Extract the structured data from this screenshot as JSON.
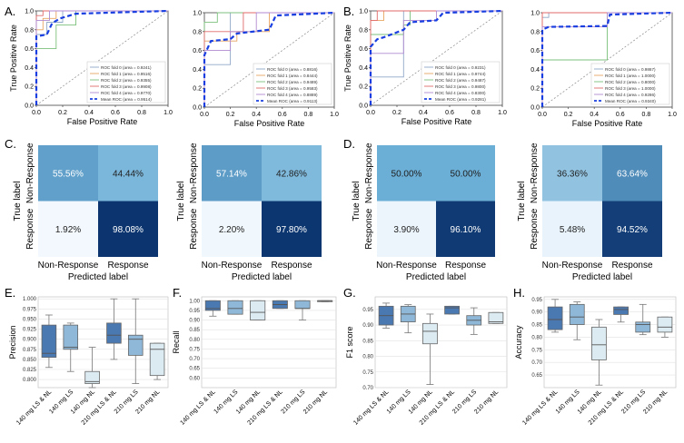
{
  "panel_labels": [
    "A.",
    "B.",
    "C.",
    "D.",
    "E.",
    "F.",
    "G.",
    "H."
  ],
  "palette": {
    "fold0": "#8fa8c8",
    "fold1": "#e8a560",
    "fold2": "#7cc07c",
    "fold3": "#e06a6a",
    "fold4": "#b08ad0",
    "mean": "#1a3fe0",
    "chance": "#888888",
    "box1": "#4a78b0",
    "box2": "#8fb8d8",
    "box3": "#dcebf2"
  },
  "chart_data": [
    {
      "id": "A1",
      "type": "line",
      "xlabel": "False Positive Rate",
      "ylabel": "True Positive Rate",
      "xlim": [
        0,
        1
      ],
      "ylim": [
        0,
        1
      ],
      "xticks": [
        "0.0",
        "0.2",
        "0.4",
        "0.6",
        "0.8",
        "1.0"
      ],
      "yticks": [
        "0.0",
        "0.2",
        "0.4",
        "0.6",
        "0.8",
        "1.0"
      ],
      "legend": [
        "ROC fold 0 (area = 0.9241)",
        "ROC fold 1 (area = 0.9516)",
        "ROC fold 2 (area = 0.9355)",
        "ROC fold 3 (area = 0.9908)",
        "ROC fold 4 (area = 0.9770)",
        "Mean ROC (area = 0.9514)"
      ],
      "series": [
        {
          "name": "fold0",
          "x": [
            0,
            0,
            0.08,
            0.08,
            0.2,
            0.2,
            1
          ],
          "y": [
            0,
            0.75,
            0.75,
            0.88,
            0.88,
            1,
            1
          ]
        },
        {
          "name": "fold1",
          "x": [
            0,
            0,
            0.05,
            0.05,
            0.15,
            0.15,
            1
          ],
          "y": [
            0,
            0.8,
            0.8,
            0.92,
            0.92,
            1,
            1
          ]
        },
        {
          "name": "fold2",
          "x": [
            0,
            0,
            0.15,
            0.15,
            0.3,
            0.3,
            1
          ],
          "y": [
            0,
            0.6,
            0.6,
            0.85,
            0.85,
            1,
            1
          ]
        },
        {
          "name": "fold3",
          "x": [
            0,
            0,
            0.05,
            0.05,
            1
          ],
          "y": [
            0,
            0.95,
            0.95,
            1,
            1
          ]
        },
        {
          "name": "fold4",
          "x": [
            0,
            0,
            0.1,
            0.1,
            1
          ],
          "y": [
            0,
            0.9,
            0.9,
            1,
            1
          ]
        },
        {
          "name": "mean",
          "x": [
            0,
            0,
            0.08,
            0.12,
            0.18,
            0.3,
            1
          ],
          "y": [
            0,
            0.73,
            0.75,
            0.87,
            0.92,
            0.97,
            1
          ]
        }
      ]
    },
    {
      "id": "A2",
      "type": "line",
      "xlabel": "False Positive Rate",
      "ylabel": "True Positive Rate",
      "xlim": [
        0,
        1
      ],
      "ylim": [
        0,
        1
      ],
      "xticks": [
        "0.0",
        "0.2",
        "0.4",
        "0.6",
        "0.8",
        "1.0"
      ],
      "yticks": [
        "0.0",
        "0.2",
        "0.4",
        "0.6",
        "0.8",
        "1.0"
      ],
      "legend": [
        "ROC fold 0 (area = 0.8816)",
        "ROC fold 1 (area = 0.8444)",
        "ROC fold 2 (area = 0.9489)",
        "ROC fold 3 (area = 0.9583)",
        "ROC fold 4 (area = 0.8889)",
        "Mean ROC (area = 0.9113)"
      ],
      "series": [
        {
          "name": "fold0",
          "x": [
            0,
            0,
            0.2,
            0.2,
            1
          ],
          "y": [
            0,
            0.45,
            0.45,
            1,
            1
          ]
        },
        {
          "name": "fold1",
          "x": [
            0,
            0,
            0.25,
            0.25,
            0.5,
            0.5,
            1
          ],
          "y": [
            0,
            0.7,
            0.7,
            0.8,
            0.8,
            1,
            1
          ]
        },
        {
          "name": "fold2",
          "x": [
            0,
            0,
            0.1,
            0.1,
            1
          ],
          "y": [
            0,
            0.9,
            0.9,
            1,
            1
          ]
        },
        {
          "name": "fold3",
          "x": [
            0,
            0,
            0.3,
            0.3,
            1
          ],
          "y": [
            0,
            0.8,
            0.8,
            1,
            1
          ]
        },
        {
          "name": "fold4",
          "x": [
            0,
            0,
            0.2,
            0.2,
            0.4,
            0.4,
            1
          ],
          "y": [
            0,
            0.6,
            0.6,
            0.8,
            0.8,
            1,
            1
          ]
        },
        {
          "name": "mean",
          "x": [
            0,
            0,
            0.05,
            0.2,
            0.25,
            0.5,
            0.55,
            1
          ],
          "y": [
            0,
            0.55,
            0.7,
            0.72,
            0.78,
            0.82,
            0.97,
            1
          ]
        }
      ]
    },
    {
      "id": "B1",
      "type": "line",
      "xlabel": "False Positive Rate",
      "ylabel": "True Positive Rate",
      "xlim": [
        0,
        1
      ],
      "ylim": [
        0,
        1
      ],
      "xticks": [
        "0.0",
        "0.2",
        "0.4",
        "0.6",
        "0.8",
        "1.0"
      ],
      "yticks": [
        "0.0",
        "0.2",
        "0.4",
        "0.6",
        "0.8",
        "1.0"
      ],
      "legend": [
        "ROC fold 0 (area = 0.9231)",
        "ROC fold 1 (area = 0.9744)",
        "ROC fold 2 (area = 0.9487)",
        "ROC fold 3 (area = 0.9800)",
        "ROC fold 4 (area = 0.8300)",
        "Mean ROC (area = 0.9281)"
      ],
      "series": [
        {
          "name": "fold0",
          "x": [
            0,
            0,
            0.25,
            0.25,
            1
          ],
          "y": [
            0,
            0.3,
            0.3,
            1,
            1
          ]
        },
        {
          "name": "fold1",
          "x": [
            0,
            0,
            0.1,
            0.1,
            1
          ],
          "y": [
            0,
            0.9,
            0.9,
            1,
            1
          ]
        },
        {
          "name": "fold2",
          "x": [
            0,
            0,
            0.25,
            0.25,
            0.3,
            0.3,
            1
          ],
          "y": [
            0,
            0.75,
            0.75,
            0.85,
            0.85,
            1,
            1
          ]
        },
        {
          "name": "fold3",
          "x": [
            0,
            0,
            0.05,
            0.05,
            1
          ],
          "y": [
            0,
            0.9,
            0.9,
            1,
            1
          ]
        },
        {
          "name": "fold4",
          "x": [
            0,
            0,
            0.25,
            0.25,
            0.5,
            0.5,
            1
          ],
          "y": [
            0,
            0.55,
            0.55,
            0.9,
            0.9,
            1,
            1
          ]
        },
        {
          "name": "mean",
          "x": [
            0,
            0,
            0.05,
            0.1,
            0.25,
            0.3,
            0.5,
            0.55,
            1
          ],
          "y": [
            0,
            0.62,
            0.7,
            0.72,
            0.8,
            0.88,
            0.9,
            0.98,
            1
          ]
        }
      ]
    },
    {
      "id": "B2",
      "type": "line",
      "xlabel": "False Positive Rate",
      "ylabel": "True Positive Rate",
      "xlim": [
        0,
        1
      ],
      "ylim": [
        0,
        1
      ],
      "xticks": [
        "0.0",
        "0.2",
        "0.4",
        "0.6",
        "0.8",
        "1.0"
      ],
      "yticks": [
        "0.0",
        "0.2",
        "0.4",
        "0.6",
        "0.8",
        "1.0"
      ],
      "legend": [
        "ROC fold 0 (area = 0.9867)",
        "ROC fold 1 (area = 1.0000)",
        "ROC fold 2 (area = 0.8000)",
        "ROC fold 3 (area = 1.0000)",
        "ROC fold 4 (area = 0.9286)",
        "Mean ROC (area = 0.9340)"
      ],
      "series": [
        {
          "name": "fold0",
          "x": [
            0,
            0,
            0.05,
            0.05,
            1
          ],
          "y": [
            0,
            0.95,
            0.95,
            1,
            1
          ]
        },
        {
          "name": "fold1",
          "x": [
            0,
            0,
            1
          ],
          "y": [
            0,
            1,
            1
          ]
        },
        {
          "name": "fold2",
          "x": [
            0,
            0,
            0.5,
            0.5,
            1
          ],
          "y": [
            0,
            0.5,
            0.5,
            1,
            1
          ]
        },
        {
          "name": "fold3",
          "x": [
            0,
            0,
            1
          ],
          "y": [
            0,
            1,
            1
          ]
        },
        {
          "name": "fold4",
          "x": [
            0,
            0,
            0.5,
            0.5,
            1
          ],
          "y": [
            0,
            0.85,
            0.85,
            1,
            1
          ]
        },
        {
          "name": "mean",
          "x": [
            0,
            0,
            0.05,
            0.5,
            0.52,
            1
          ],
          "y": [
            0,
            0.82,
            0.85,
            0.86,
            0.98,
            1
          ]
        }
      ]
    },
    {
      "id": "C1",
      "type": "heatmap",
      "xlabel": "Predicted label",
      "ylabel": "True label",
      "rows": [
        "Non-Response",
        "Response"
      ],
      "cols": [
        "Non-Response",
        "Response"
      ],
      "values": [
        [
          55.56,
          44.44
        ],
        [
          1.92,
          98.08
        ]
      ],
      "cells": [
        [
          "55.56%",
          "44.44%"
        ],
        [
          "1.92%",
          "98.08%"
        ]
      ]
    },
    {
      "id": "C2",
      "type": "heatmap",
      "xlabel": "Predicted label",
      "ylabel": "True label",
      "rows": [
        "Non-Response",
        "Response"
      ],
      "cols": [
        "Non-Response",
        "Response"
      ],
      "values": [
        [
          57.14,
          42.86
        ],
        [
          2.2,
          97.8
        ]
      ],
      "cells": [
        [
          "57.14%",
          "42.86%"
        ],
        [
          "2.20%",
          "97.80%"
        ]
      ]
    },
    {
      "id": "D1",
      "type": "heatmap",
      "xlabel": "Predicted label",
      "ylabel": "True label",
      "rows": [
        "Non-Response",
        "Response"
      ],
      "cols": [
        "Non-Response",
        "Response"
      ],
      "values": [
        [
          50.0,
          50.0
        ],
        [
          3.9,
          96.1
        ]
      ],
      "cells": [
        [
          "50.00%",
          "50.00%"
        ],
        [
          "3.90%",
          "96.10%"
        ]
      ]
    },
    {
      "id": "D2",
      "type": "heatmap",
      "xlabel": "Predicted label",
      "ylabel": "True label",
      "rows": [
        "Non-Response",
        "Response"
      ],
      "cols": [
        "Non-Response",
        "Response"
      ],
      "values": [
        [
          36.36,
          63.64
        ],
        [
          5.48,
          94.52
        ]
      ],
      "cells": [
        [
          "36.36%",
          "63.64%"
        ],
        [
          "5.48%",
          "94.52%"
        ]
      ]
    },
    {
      "id": "E",
      "type": "box",
      "ylabel": "Precision",
      "categories": [
        "140 mg LS & NL",
        "140 mg LS",
        "140 mg NL",
        "210 mg LS & NL",
        "210 mg LS",
        "210 mg NL"
      ],
      "ylim": [
        0.78,
        1.005
      ],
      "yticks": [
        "0.800",
        "0.825",
        "0.850",
        "0.875",
        "0.900",
        "0.925",
        "0.950",
        "0.975",
        "1.000"
      ],
      "ytick_values": [
        0.8,
        0.825,
        0.85,
        0.875,
        0.9,
        0.925,
        0.95,
        0.975,
        1.0
      ],
      "boxes": [
        {
          "min": 0.83,
          "q1": 0.855,
          "median": 0.865,
          "q3": 0.935,
          "max": 0.96
        },
        {
          "min": 0.82,
          "q1": 0.875,
          "median": 0.88,
          "q3": 0.935,
          "max": 0.94
        },
        {
          "min": 0.78,
          "q1": 0.79,
          "median": 0.795,
          "q3": 0.82,
          "max": 0.88
        },
        {
          "min": 0.85,
          "q1": 0.89,
          "median": 0.91,
          "q3": 0.94,
          "max": 1.0
        },
        {
          "min": 0.79,
          "q1": 0.86,
          "median": 0.9,
          "q3": 0.91,
          "max": 1.0
        },
        {
          "min": 0.8,
          "q1": 0.81,
          "median": 0.875,
          "q3": 0.89,
          "max": 0.89
        }
      ]
    },
    {
      "id": "F",
      "type": "box",
      "ylabel": "Recall",
      "categories": [
        "140 mg LS & NL",
        "140 mg LS",
        "140 mg NL",
        "210 mg LS & NL",
        "210 mg LS",
        "210 mg NL"
      ],
      "ylim": [
        0.55,
        1.02
      ],
      "yticks": [
        "0.60",
        "0.65",
        "0.70",
        "0.75",
        "0.80",
        "0.85",
        "0.90",
        "0.95",
        "1.00"
      ],
      "ytick_values": [
        0.6,
        0.65,
        0.7,
        0.75,
        0.8,
        0.85,
        0.9,
        0.95,
        1.0
      ],
      "boxes": [
        {
          "min": 0.92,
          "q1": 0.95,
          "median": 0.96,
          "q3": 1.0,
          "max": 1.0
        },
        {
          "min": 0.93,
          "q1": 0.93,
          "median": 0.96,
          "q3": 1.0,
          "max": 1.0
        },
        {
          "min": 0.9,
          "q1": 0.9,
          "median": 0.94,
          "q3": 1.0,
          "max": 1.0
        },
        {
          "min": 0.96,
          "q1": 0.96,
          "median": 0.98,
          "q3": 1.0,
          "max": 1.0
        },
        {
          "min": 0.9,
          "q1": 0.96,
          "median": 0.96,
          "q3": 1.0,
          "max": 1.0
        },
        {
          "min": 0.995,
          "q1": 0.995,
          "median": 1.0,
          "q3": 1.0,
          "max": 1.0
        }
      ]
    },
    {
      "id": "G",
      "type": "box",
      "ylabel": "F1 score",
      "categories": [
        "140 mg LS & NL",
        "140 mg LS",
        "140 mg NL",
        "210 mg LS & NL",
        "210 mg LS",
        "210 mg NL"
      ],
      "ylim": [
        0.7,
        0.99
      ],
      "yticks": [
        "0.70",
        "0.75",
        "0.80",
        "0.85",
        "0.90",
        "0.95"
      ],
      "ytick_values": [
        0.7,
        0.75,
        0.8,
        0.85,
        0.9,
        0.95
      ],
      "boxes": [
        {
          "min": 0.89,
          "q1": 0.9,
          "median": 0.93,
          "q3": 0.96,
          "max": 0.97
        },
        {
          "min": 0.875,
          "q1": 0.91,
          "median": 0.935,
          "q3": 0.96,
          "max": 0.965
        },
        {
          "min": 0.71,
          "q1": 0.84,
          "median": 0.88,
          "q3": 0.905,
          "max": 0.935
        },
        {
          "min": 0.935,
          "q1": 0.935,
          "median": 0.955,
          "q3": 0.96,
          "max": 0.96
        },
        {
          "min": 0.87,
          "q1": 0.9,
          "median": 0.915,
          "q3": 0.93,
          "max": 0.955
        },
        {
          "min": 0.905,
          "q1": 0.905,
          "median": 0.91,
          "q3": 0.94,
          "max": 0.94
        }
      ]
    },
    {
      "id": "H",
      "type": "box",
      "ylabel": "Accuracy",
      "categories": [
        "140 mg LS & NL",
        "140 mg LS",
        "140 mg NL",
        "210 mg LS & NL",
        "210 mg LS",
        "210 mg NL"
      ],
      "ylim": [
        0.6,
        0.96
      ],
      "yticks": [
        "0.65",
        "0.70",
        "0.75",
        "0.80",
        "0.85",
        "0.90",
        "0.95"
      ],
      "ytick_values": [
        0.65,
        0.7,
        0.75,
        0.8,
        0.85,
        0.9,
        0.95
      ],
      "boxes": [
        {
          "min": 0.82,
          "q1": 0.83,
          "median": 0.87,
          "q3": 0.92,
          "max": 0.95
        },
        {
          "min": 0.79,
          "q1": 0.85,
          "median": 0.88,
          "q3": 0.93,
          "max": 0.94
        },
        {
          "min": 0.61,
          "q1": 0.71,
          "median": 0.77,
          "q3": 0.84,
          "max": 0.87
        },
        {
          "min": 0.86,
          "q1": 0.89,
          "median": 0.91,
          "q3": 0.92,
          "max": 0.92
        },
        {
          "min": 0.81,
          "q1": 0.82,
          "median": 0.85,
          "q3": 0.86,
          "max": 0.93
        },
        {
          "min": 0.8,
          "q1": 0.82,
          "median": 0.84,
          "q3": 0.88,
          "max": 0.88
        }
      ]
    }
  ]
}
